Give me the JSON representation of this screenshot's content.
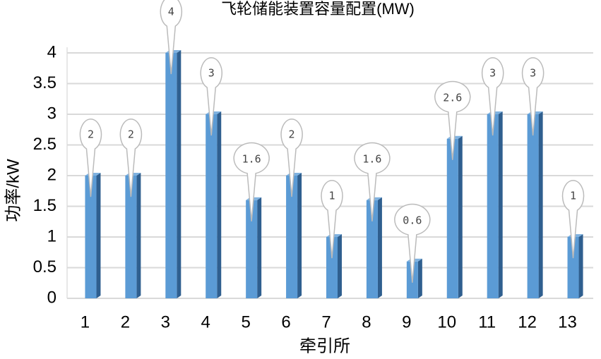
{
  "chart_data": {
    "type": "bar",
    "title": "飞轮储能装置容量配置(MW)",
    "x_label": "牵引所",
    "y_label": "功率/kW",
    "categories": [
      "1",
      "2",
      "3",
      "4",
      "5",
      "6",
      "7",
      "8",
      "9",
      "10",
      "11",
      "12",
      "13"
    ],
    "values": [
      2,
      2,
      4,
      3,
      1.6,
      2,
      1,
      1.6,
      0.6,
      2.6,
      3,
      3,
      1
    ],
    "color": "#5b9bd5",
    "ylim": [
      0,
      4
    ],
    "yticks": [
      0,
      0.5,
      1,
      1.5,
      2,
      2.5,
      3,
      3.5,
      4
    ],
    "grid": true
  }
}
